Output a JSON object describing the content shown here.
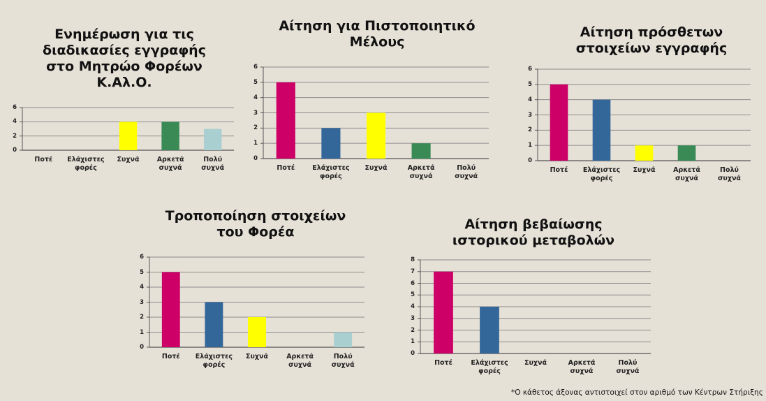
{
  "chart_data": [
    {
      "type": "bar",
      "title": "Ενημέρωση για τις διαδικασίες εγγραφής στο Μητρώο Φορέων Κ.Αλ.Ο.",
      "categories": [
        "Ποτέ",
        "Ελάχιστες φορές",
        "Συχνά",
        "Αρκετά συχνά",
        "Πολύ συχνά"
      ],
      "values": [
        0,
        0,
        4,
        4,
        3
      ],
      "colors": [
        "#cc0066",
        "#336699",
        "#ffff00",
        "#3a8a55",
        "#a9cfd0"
      ],
      "ylim": [
        0,
        6
      ],
      "yticks": [
        0,
        2,
        4,
        6
      ],
      "grid": true
    },
    {
      "type": "bar",
      "title": "Αίτηση για Πιστοποιητικό Μέλους",
      "categories": [
        "Ποτέ",
        "Ελάχιστες φορές",
        "Συχνά",
        "Αρκετά συχνά",
        "Πολύ συχνά"
      ],
      "values": [
        5,
        2,
        3,
        1,
        0
      ],
      "colors": [
        "#cc0066",
        "#336699",
        "#ffff00",
        "#3a8a55",
        "#a9cfd0"
      ],
      "ylim": [
        0,
        6
      ],
      "yticks": [
        0,
        1,
        2,
        3,
        4,
        5,
        6
      ],
      "grid": true
    },
    {
      "type": "bar",
      "title": "Αίτηση πρόσθετων στοιχείων εγγραφής",
      "categories": [
        "Ποτέ",
        "Ελάχιστες φορές",
        "Συχνά",
        "Αρκετά συχνά",
        "Πολύ συχνά"
      ],
      "values": [
        5,
        4,
        1,
        1,
        0
      ],
      "colors": [
        "#cc0066",
        "#336699",
        "#ffff00",
        "#3a8a55",
        "#a9cfd0"
      ],
      "ylim": [
        0,
        6
      ],
      "yticks": [
        0,
        1,
        2,
        3,
        4,
        5,
        6
      ],
      "grid": true
    },
    {
      "type": "bar",
      "title": "Τροποποίηση στοιχείων του Φορέα",
      "categories": [
        "Ποτέ",
        "Ελάχιστες φορές",
        "Συχνά",
        "Αρκετά συχνά",
        "Πολύ συχνά"
      ],
      "values": [
        5,
        3,
        2,
        0,
        1
      ],
      "colors": [
        "#cc0066",
        "#336699",
        "#ffff00",
        "#3a8a55",
        "#a9cfd0"
      ],
      "ylim": [
        0,
        6
      ],
      "yticks": [
        0,
        1,
        2,
        3,
        4,
        5,
        6
      ],
      "grid": true
    },
    {
      "type": "bar",
      "title": "Αίτηση βεβαίωσης ιστορικού μεταβολών",
      "categories": [
        "Ποτέ",
        "Ελάχιστες φορές",
        "Συχνά",
        "Αρκετά συχνά",
        "Πολύ συχνά"
      ],
      "values": [
        7,
        4,
        0,
        0,
        0
      ],
      "colors": [
        "#cc0066",
        "#336699",
        "#ffff00",
        "#3a8a55",
        "#a9cfd0"
      ],
      "ylim": [
        0,
        8
      ],
      "yticks": [
        0,
        1,
        2,
        3,
        4,
        5,
        6,
        7,
        8
      ],
      "grid": true
    }
  ],
  "footnote": "*Ο κάθετος άξονας αντιστοιχεί στον αριθμό των Κέντρων Στήριξης"
}
